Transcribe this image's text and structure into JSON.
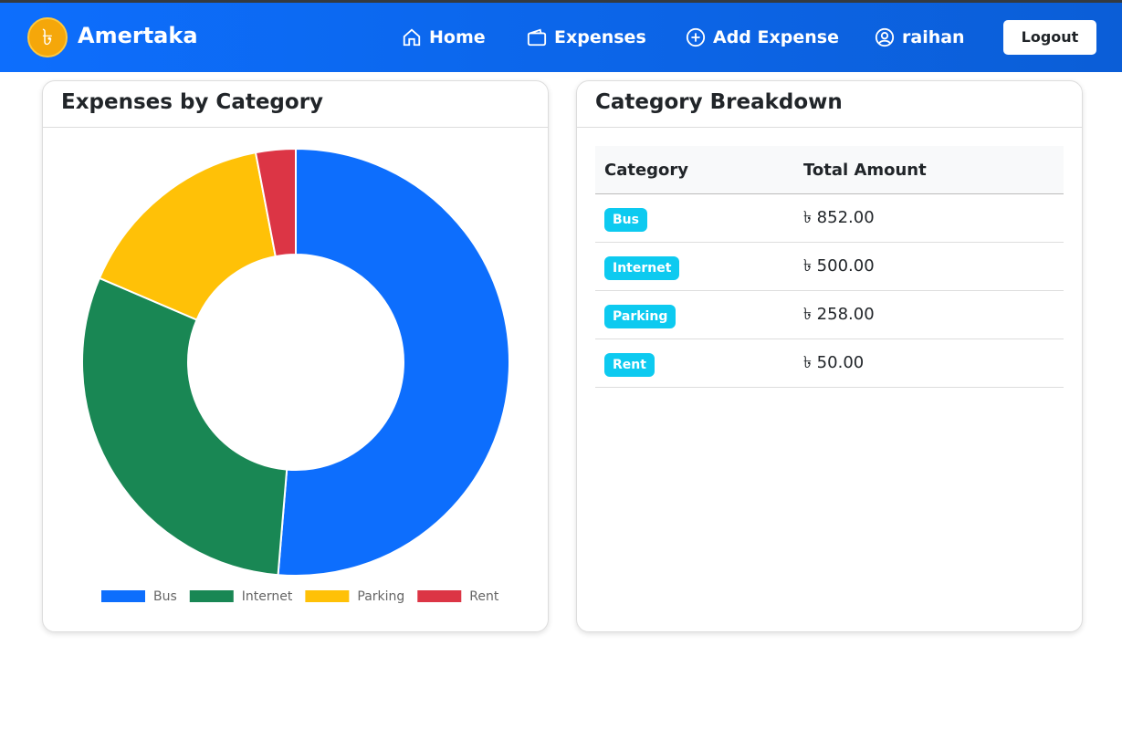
{
  "navbar": {
    "logo_icon": "৳",
    "brand": "Amertaka",
    "links": [
      "Home",
      "Expenses",
      "Add Expense",
      "raihan"
    ],
    "logout": "Logout"
  },
  "chart_card": {
    "title": "Expenses by Category"
  },
  "table_card": {
    "title": "Category Breakdown"
  },
  "table": {
    "headers": [
      "Category",
      "Total Amount"
    ],
    "rows": [
      [
        "Bus",
        "৳ 852.00"
      ],
      [
        "Internet",
        "৳ 500.00"
      ],
      [
        "Parking",
        "৳ 258.00"
      ],
      [
        "Rent",
        "৳ 50.00"
      ]
    ]
  },
  "chart_data": {
    "type": "doughnut",
    "categories": [
      "Bus",
      "Internet",
      "Parking",
      "Rent"
    ],
    "values": [
      852,
      500,
      258,
      50
    ],
    "colors": [
      "#0d6efd",
      "#198754",
      "#ffc107",
      "#dc3545"
    ],
    "legend": "bottom"
  }
}
